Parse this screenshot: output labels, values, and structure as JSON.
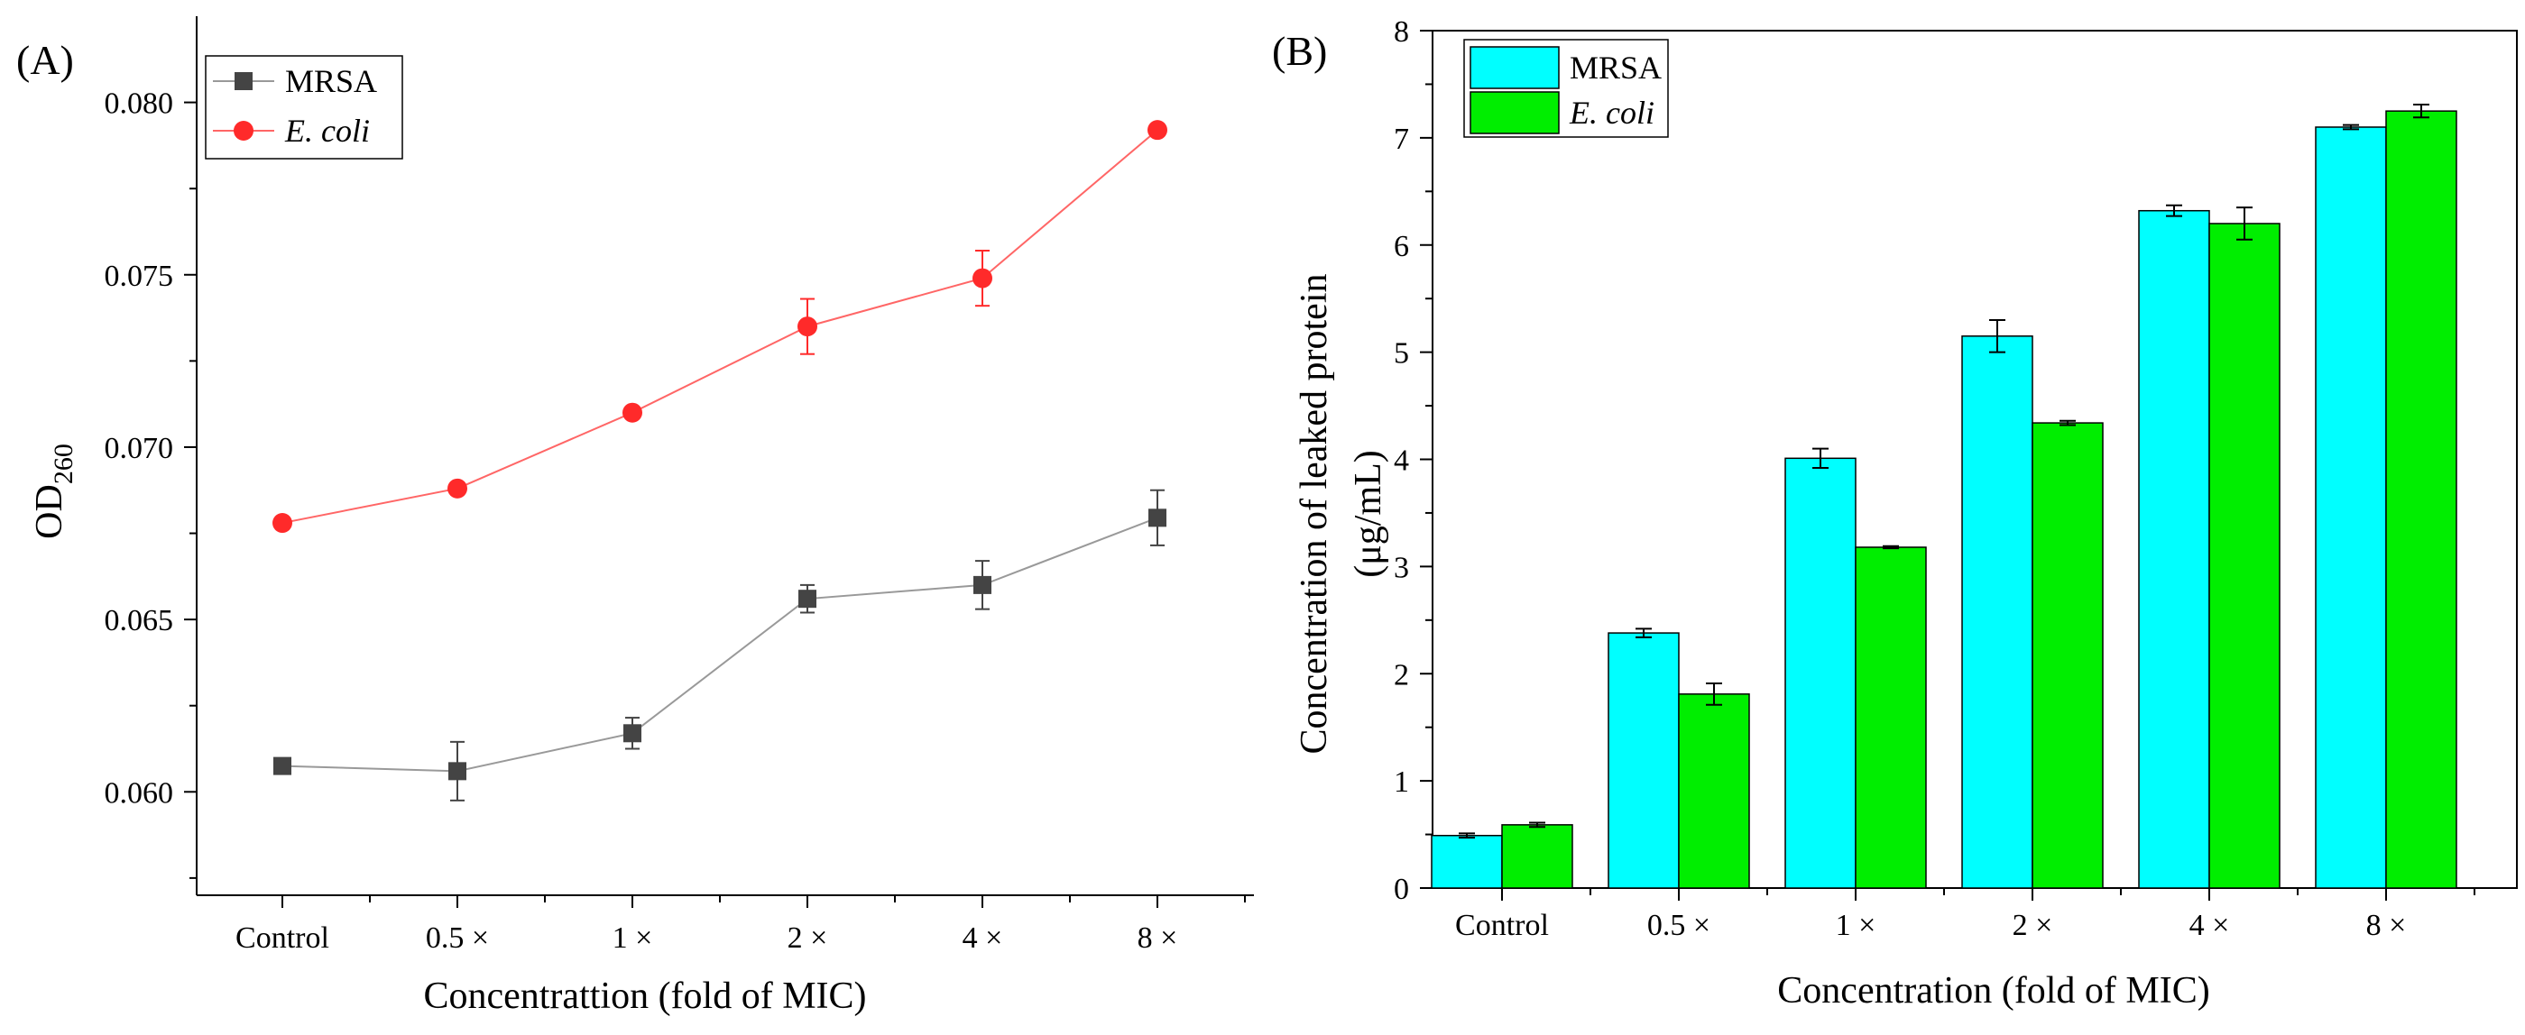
{
  "chart_data": [
    {
      "panel": "(A)",
      "type": "line",
      "categories": [
        "Control",
        "0.5 ×",
        "1 ×",
        "2 ×",
        "4 ×",
        "8 ×"
      ],
      "xlabel": "Concentrattion (fold of MIC)",
      "ylabel": "OD",
      "ylabel_sub": "260",
      "ylim": [
        0.057,
        0.0825
      ],
      "yticks": [
        "0.060",
        "0.065",
        "0.070",
        "0.075",
        "0.080"
      ],
      "ytick_values": [
        0.06,
        0.065,
        0.07,
        0.075,
        0.08
      ],
      "legend_position": "top-left",
      "series": [
        {
          "name": "MRSA",
          "italic": false,
          "color": "#444444",
          "line_color": "#999999",
          "marker": "square",
          "values": [
            0.06075,
            0.0606,
            0.0617,
            0.0656,
            0.066,
            0.06795
          ],
          "errors": [
            0.0001,
            0.00085,
            0.00045,
            0.0004,
            0.0007,
            0.0008
          ]
        },
        {
          "name": "E. coli",
          "italic": true,
          "color": "#ff2a2a",
          "line_color": "#ff6666",
          "marker": "circle",
          "values": [
            0.0678,
            0.0688,
            0.071,
            0.0735,
            0.0749,
            0.0792
          ],
          "errors": [
            0.0001,
            0.0001,
            0.0001,
            0.0008,
            0.0008,
            0.0001
          ]
        }
      ]
    },
    {
      "panel": "(B)",
      "type": "bar",
      "categories": [
        "Control",
        "0.5 ×",
        "1 ×",
        "2 ×",
        "4 ×",
        "8 ×"
      ],
      "xlabel": "Concentration (fold of MIC)",
      "ylabel_line1": "Concentration of leaked protein",
      "ylabel_line2": "(μg/mL)",
      "ylim": [
        0,
        8
      ],
      "yticks": [
        "0",
        "1",
        "2",
        "3",
        "4",
        "5",
        "6",
        "7",
        "8"
      ],
      "ytick_values": [
        0,
        1,
        2,
        3,
        4,
        5,
        6,
        7,
        8
      ],
      "legend_position": "top-left",
      "series": [
        {
          "name": "MRSA",
          "italic": false,
          "color": "#00ffff",
          "values": [
            0.49,
            2.38,
            4.01,
            5.15,
            6.32,
            7.1
          ],
          "errors": [
            0.02,
            0.04,
            0.09,
            0.15,
            0.05,
            0.02
          ]
        },
        {
          "name": "E. coli",
          "italic": true,
          "color": "#00ee00",
          "values": [
            0.59,
            1.81,
            3.18,
            4.34,
            6.2,
            7.25
          ],
          "errors": [
            0.02,
            0.1,
            0.01,
            0.02,
            0.15,
            0.06
          ]
        }
      ]
    }
  ]
}
